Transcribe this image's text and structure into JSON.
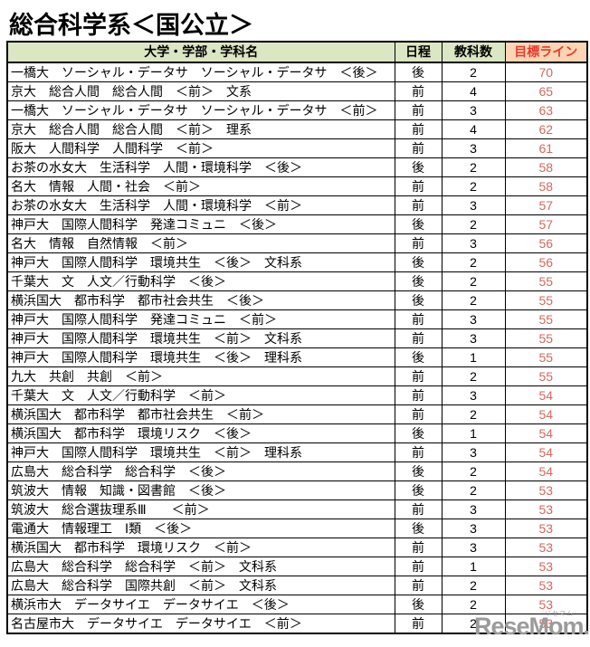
{
  "page": {
    "title": "総合科学系＜国公立＞"
  },
  "colors": {
    "header_green": "#dbe6c2",
    "header_peach": "#fcd5b4",
    "header_red": "#e8392b",
    "target_value_red": "#d3685c",
    "border_black": "#000000",
    "logo_gray": "#9b9b9b"
  },
  "table": {
    "headers": [
      "大学・学部・学科名",
      "日程",
      "教科数",
      "目標ライン"
    ],
    "rows": [
      {
        "name": "一橋大　ソーシャル・データサ　ソーシャル・データサ　＜後＞",
        "schedule": "後",
        "subjects": "2",
        "target": "70"
      },
      {
        "name": "京大　総合人間　総合人間　＜前＞　文系",
        "schedule": "前",
        "subjects": "4",
        "target": "65"
      },
      {
        "name": "一橋大　ソーシャル・データサ　ソーシャル・データサ　＜前＞",
        "schedule": "前",
        "subjects": "3",
        "target": "63"
      },
      {
        "name": "京大　総合人間　総合人間　＜前＞　理系",
        "schedule": "前",
        "subjects": "4",
        "target": "62"
      },
      {
        "name": "阪大　人間科学　人間科学　＜前＞",
        "schedule": "前",
        "subjects": "3",
        "target": "61"
      },
      {
        "name": "お茶の水女大　生活科学　人間・環境科学　＜後＞",
        "schedule": "後",
        "subjects": "2",
        "target": "58"
      },
      {
        "name": "名大　情報　人間・社会　＜前＞",
        "schedule": "前",
        "subjects": "2",
        "target": "58"
      },
      {
        "name": "お茶の水女大　生活科学　人間・環境科学　＜前＞",
        "schedule": "前",
        "subjects": "3",
        "target": "57"
      },
      {
        "name": "神戸大　国際人間科学　発達コミュニ　＜後＞",
        "schedule": "後",
        "subjects": "2",
        "target": "57"
      },
      {
        "name": "名大　情報　自然情報　＜前＞",
        "schedule": "前",
        "subjects": "3",
        "target": "56"
      },
      {
        "name": "神戸大　国際人間科学　環境共生　＜後＞　文科系",
        "schedule": "後",
        "subjects": "2",
        "target": "56"
      },
      {
        "name": "千葉大　文　人文／行動科学　＜後＞",
        "schedule": "後",
        "subjects": "2",
        "target": "55"
      },
      {
        "name": "横浜国大　都市科学　都市社会共生　＜後＞",
        "schedule": "後",
        "subjects": "2",
        "target": "55"
      },
      {
        "name": "神戸大　国際人間科学　発達コミュニ　＜前＞",
        "schedule": "前",
        "subjects": "3",
        "target": "55"
      },
      {
        "name": "神戸大　国際人間科学　環境共生　＜前＞　文科系",
        "schedule": "前",
        "subjects": "3",
        "target": "55"
      },
      {
        "name": "神戸大　国際人間科学　環境共生　＜後＞　理科系",
        "schedule": "後",
        "subjects": "1",
        "target": "55"
      },
      {
        "name": "九大　共創　共創　＜前＞",
        "schedule": "前",
        "subjects": "2",
        "target": "55"
      },
      {
        "name": "千葉大　文　人文／行動科学　＜前＞",
        "schedule": "前",
        "subjects": "3",
        "target": "54"
      },
      {
        "name": "横浜国大　都市科学　都市社会共生　＜前＞",
        "schedule": "前",
        "subjects": "2",
        "target": "54"
      },
      {
        "name": "横浜国大　都市科学　環境リスク　＜後＞",
        "schedule": "後",
        "subjects": "1",
        "target": "54"
      },
      {
        "name": "神戸大　国際人間科学　環境共生　＜前＞　理科系",
        "schedule": "前",
        "subjects": "3",
        "target": "54"
      },
      {
        "name": "広島大　総合科学　総合科学　＜後＞",
        "schedule": "後",
        "subjects": "2",
        "target": "54"
      },
      {
        "name": "筑波大　情報　知識・図書館　＜後＞",
        "schedule": "後",
        "subjects": "2",
        "target": "53"
      },
      {
        "name": "筑波大　総合選抜理系Ⅲ　　＜前＞",
        "schedule": "前",
        "subjects": "3",
        "target": "53"
      },
      {
        "name": "電通大　情報理工　Ⅰ類　＜後＞",
        "schedule": "後",
        "subjects": "3",
        "target": "53"
      },
      {
        "name": "横浜国大　都市科学　環境リスク　＜前＞",
        "schedule": "前",
        "subjects": "3",
        "target": "53"
      },
      {
        "name": "広島大　総合科学　総合科学　＜前＞　文科系",
        "schedule": "前",
        "subjects": "1",
        "target": "53"
      },
      {
        "name": "広島大　総合科学　国際共創　＜前＞　文科系",
        "schedule": "前",
        "subjects": "2",
        "target": "53"
      },
      {
        "name": "横浜市大　データサイエ　データサイエ　＜後＞",
        "schedule": "後",
        "subjects": "2",
        "target": "53"
      },
      {
        "name": "名古屋市大　データサイエ　データサイエ　＜前＞",
        "schedule": "前",
        "subjects": "2",
        "target": "53"
      }
    ]
  },
  "footer": {
    "logo_text": "ReseMom",
    "logo_dot": ".",
    "logo_ruby": "リセマム"
  }
}
